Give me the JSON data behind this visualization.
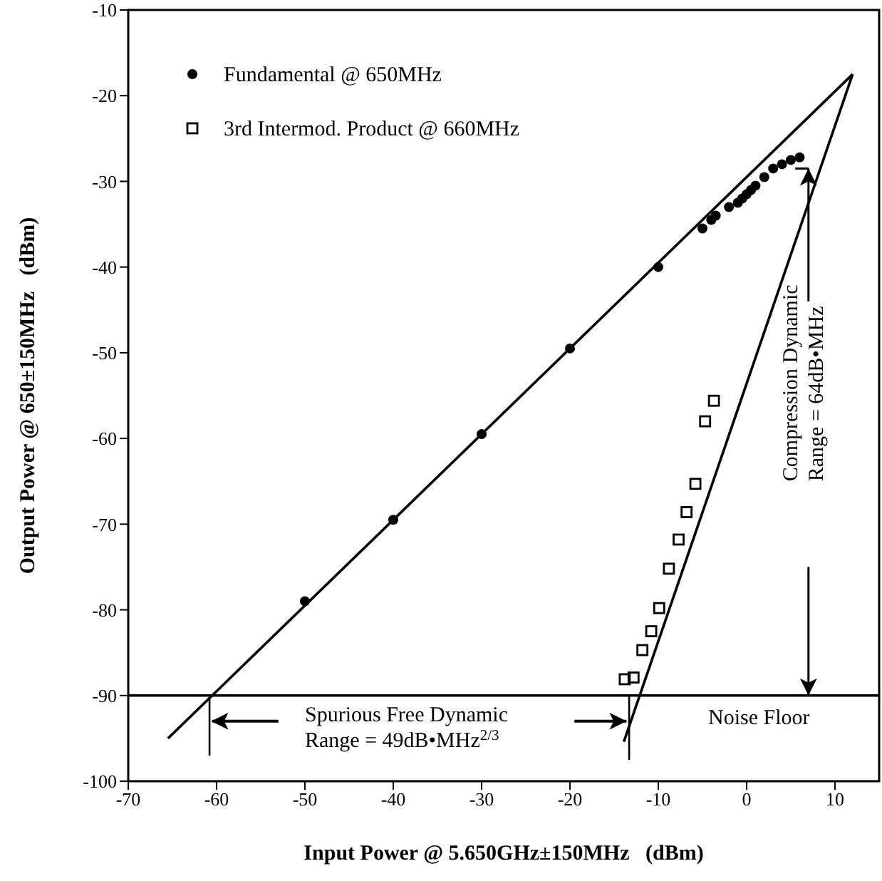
{
  "chart_data": {
    "type": "scatter",
    "xlabel": "Input Power @ 5.650GHz±150MHz   (dBm)",
    "ylabel": "Output Power @ 650±150MHz   (dBm)",
    "xlim": [
      -70,
      15
    ],
    "xticks": [
      -70,
      -60,
      -50,
      -40,
      -30,
      -20,
      -10,
      0,
      10
    ],
    "ylim": [
      -100,
      -10
    ],
    "yticks": [
      -100,
      -90,
      -80,
      -70,
      -60,
      -50,
      -40,
      -30,
      -20,
      -10
    ],
    "legend": "top left",
    "series": [
      {
        "name": "Fundamental @ 650MHz",
        "marker": "circle",
        "color": "#000000",
        "x": [
          -50,
          -40,
          -30,
          -20,
          -10,
          -5,
          -4,
          -3.5,
          -2,
          -1,
          -0.5,
          0,
          0.5,
          1,
          2,
          3,
          4,
          5,
          6
        ],
        "values": [
          -79,
          -69.5,
          -59.5,
          -49.5,
          -40,
          -35.5,
          -34.5,
          -34,
          -33,
          -32.5,
          -32,
          -31.5,
          -31,
          -30.5,
          -29.5,
          -28.5,
          -28,
          -27.5,
          -27.2
        ]
      },
      {
        "name": "3rd Intermod. Product @ 660MHz",
        "marker": "square",
        "color": "#000000",
        "x": [
          -13.8,
          -12.8,
          -11.8,
          -10.8,
          -9.9,
          -8.8,
          -7.7,
          -6.8,
          -5.8,
          -4.7,
          -3.7
        ],
        "values": [
          -88.1,
          -87.9,
          -84.7,
          -82.5,
          -79.8,
          -75.2,
          -71.8,
          -68.6,
          -65.3,
          -58,
          -55.6
        ]
      },
      {
        "type": "line",
        "color": "#000000",
        "x": [
          -65.5,
          12
        ],
        "values": [
          -95,
          -17.5
        ]
      },
      {
        "type": "line",
        "color": "#000000",
        "x": [
          -13.9,
          12
        ],
        "values": [
          -95.4,
          -17.5
        ]
      }
    ],
    "ref_lines": [
      {
        "axis": "y",
        "value": -90,
        "label": "Noise Floor",
        "color": "#000000"
      }
    ],
    "annotations": [
      "Spurious Free Dynamic\nRange = 49dB•MHz$^{2/3}$",
      "Compression Dynamic\nRange = 64dB•MHz"
    ]
  }
}
